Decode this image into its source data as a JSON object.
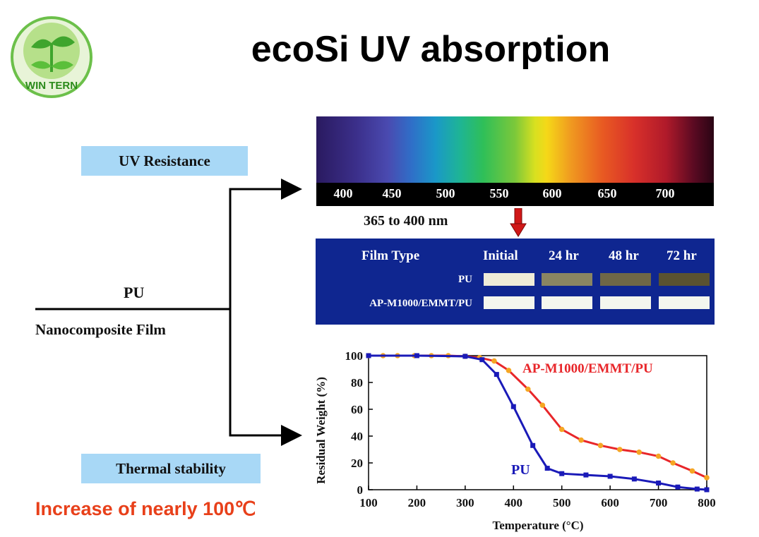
{
  "slide": {
    "title": "ecoSi UV absorption",
    "logo_text": "WIN TERN",
    "footer_note": "Increase of nearly 100℃"
  },
  "diagram": {
    "uv_resistance_label": "UV Resistance",
    "thermal_stability_label": "Thermal stability",
    "material_top": "PU",
    "material_bottom": "Nanocomposite Film",
    "wavelength_note": "365 to 400 nm"
  },
  "spectrum": {
    "ticks": [
      "400",
      "450",
      "500",
      "550",
      "600",
      "650",
      "700"
    ]
  },
  "film_table": {
    "headers": [
      "Film Type",
      "Initial",
      "24 hr",
      "48 hr",
      "72 hr"
    ],
    "rows": [
      {
        "name": "PU",
        "colors": [
          "#efecd8",
          "#8a8562",
          "#6f6747",
          "#5a5231"
        ]
      },
      {
        "name": "AP-M1000/EMMT/PU",
        "colors": [
          "#f4f6ee",
          "#f4f6ee",
          "#f4f6ee",
          "#f4f6ee"
        ]
      }
    ]
  },
  "chart_data": {
    "type": "line",
    "xlabel": "Temperature (°C)",
    "ylabel": "Residual Weight (%)",
    "xlim": [
      100,
      800
    ],
    "ylim": [
      0,
      100
    ],
    "xticks": [
      "100",
      "200",
      "300",
      "400",
      "500",
      "600",
      "700",
      "800"
    ],
    "yticks": [
      "0",
      "20",
      "40",
      "60",
      "80",
      "100"
    ],
    "grid": false,
    "series": [
      {
        "name": "AP-M1000/EMMT/PU",
        "color": "#e8262a",
        "marker_color": "#f5a623",
        "x": [
          100,
          130,
          160,
          195,
          230,
          265,
          300,
          330,
          360,
          390,
          430,
          460,
          500,
          540,
          580,
          620,
          660,
          700,
          730,
          770,
          800
        ],
        "y": [
          100,
          100,
          100,
          100,
          100,
          100,
          99.5,
          98.5,
          96,
          89,
          75,
          63,
          45,
          37,
          33,
          30,
          28,
          25,
          20,
          14,
          9
        ]
      },
      {
        "name": "PU",
        "color": "#1a1ab8",
        "marker_color": "#1a1ab8",
        "x": [
          100,
          200,
          300,
          335,
          365,
          400,
          440,
          470,
          500,
          550,
          600,
          650,
          700,
          740,
          780,
          800
        ],
        "y": [
          100,
          100,
          99.5,
          97,
          86,
          62,
          33,
          16,
          12,
          11,
          10,
          8,
          5,
          2,
          0.5,
          0
        ]
      }
    ]
  }
}
